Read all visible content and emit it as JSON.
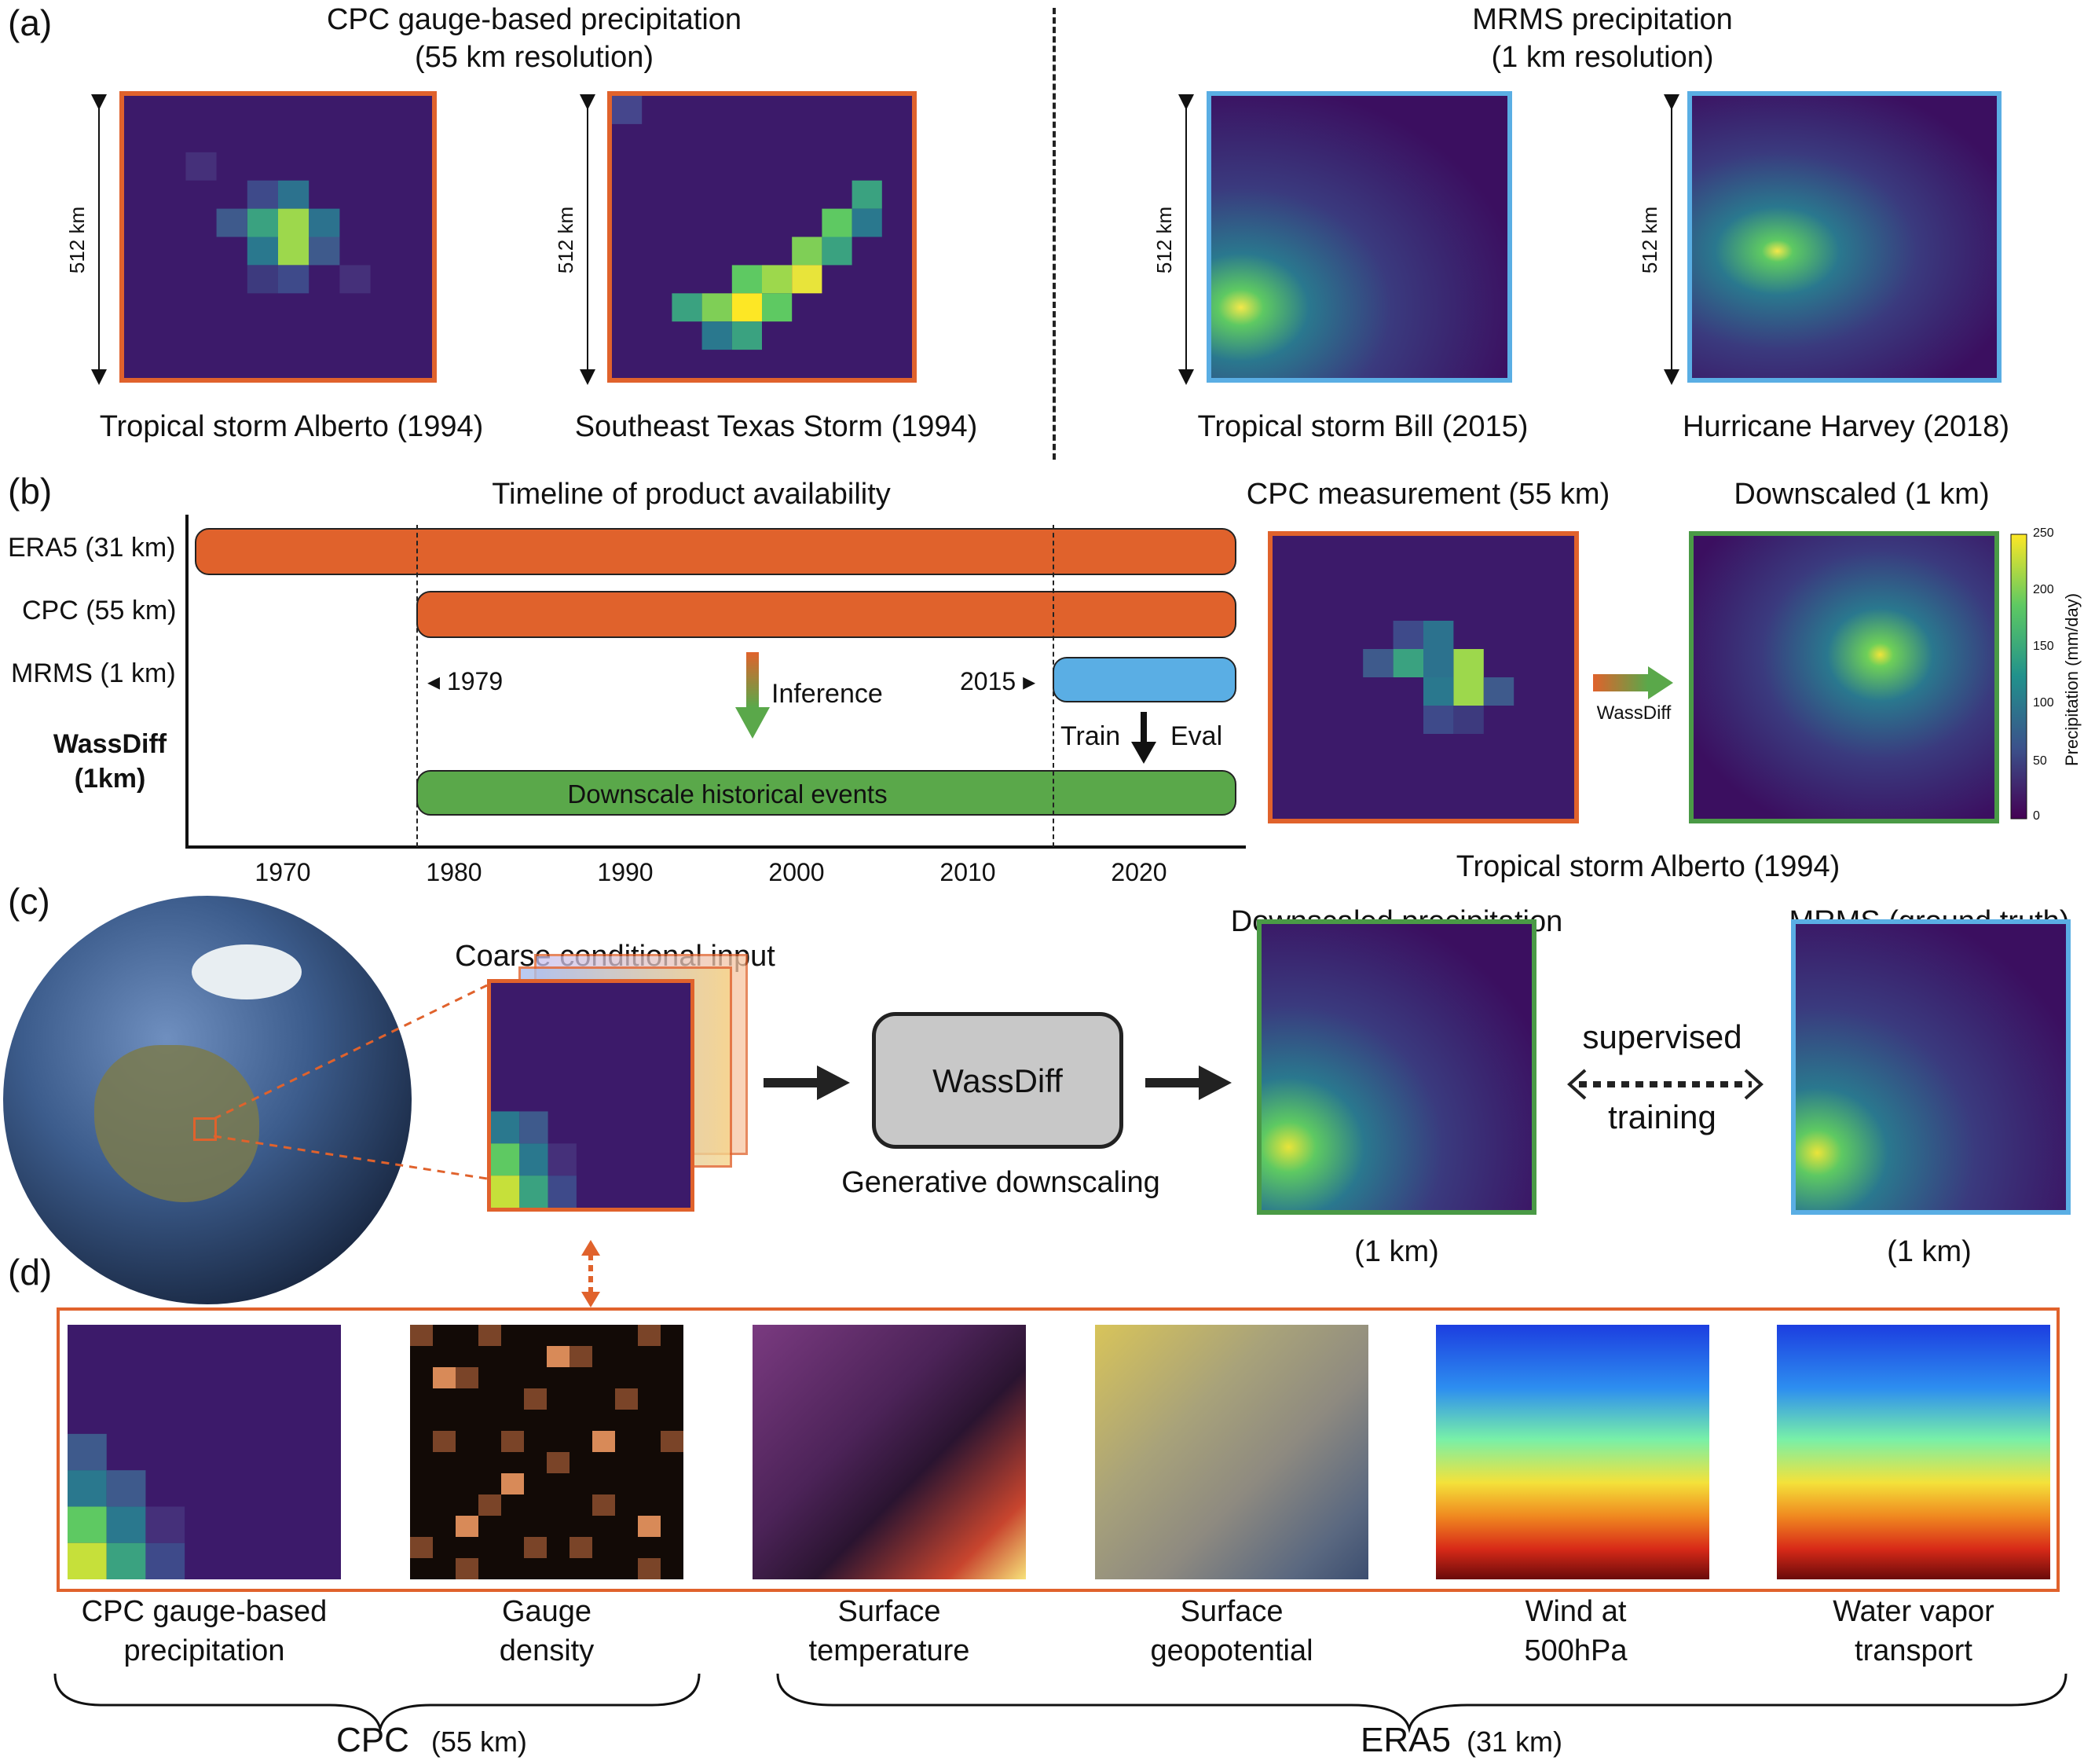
{
  "panel_letters": {
    "a": "(a)",
    "b": "(b)",
    "c": "(c)",
    "d": "(d)"
  },
  "panel_a": {
    "left_title_1": "CPC gauge-based precipitation",
    "left_title_2": "(55 km resolution)",
    "right_title_1": "MRMS precipitation",
    "right_title_2": "(1 km resolution)",
    "scale_label": "512 km",
    "maps": [
      {
        "caption": "Tropical storm Alberto (1994)"
      },
      {
        "caption": "Southeast Texas Storm (1994)"
      },
      {
        "caption": "Tropical storm Bill (2015)"
      },
      {
        "caption": "Hurricane Harvey (2018)"
      }
    ]
  },
  "panel_b": {
    "timeline_title": "Timeline of product availability",
    "rows": [
      {
        "label": "ERA5 (31 km)",
        "start": 1965,
        "end": 2025,
        "color": "#e0622c"
      },
      {
        "label": "CPC (55 km)",
        "start": 1979,
        "end": 2025,
        "color": "#e0622c"
      },
      {
        "label": "MRMS (1 km)",
        "start": 2015,
        "end": 2025,
        "color": "#5aaee4"
      }
    ],
    "wassdiff_label_1": "WassDiff",
    "wassdiff_label_2": "(1km)",
    "wassdiff_bar": {
      "label": "Downscale historical events",
      "start": 1979,
      "end": 2025,
      "color": "#5aa84a"
    },
    "marker_1979": "1979",
    "marker_2015": "2015",
    "inference": "Inference",
    "train": "Train",
    "eval": "Eval",
    "x_ticks": [
      "1970",
      "1980",
      "1990",
      "2000",
      "2010",
      "2020"
    ],
    "cpc_title": "CPC measurement (55 km)",
    "down_title": "Downscaled (1 km)",
    "arrow_label": "WassDiff",
    "event_caption": "Tropical storm Alberto (1994)",
    "colorbar_label": "Precipitation (mm/day)",
    "colorbar_ticks": [
      "250",
      "200",
      "150",
      "100",
      "50",
      "0"
    ]
  },
  "panel_c": {
    "coarse_title": "Coarse conditional input",
    "model_label": "WassDiff",
    "model_caption": "Generative downscaling",
    "down_title": "Downscaled precipitation",
    "truth_title": "MRMS (ground truth)",
    "supervised_1": "supervised",
    "supervised_2": "training",
    "res_left": "(1 km)",
    "res_right": "(1 km)"
  },
  "panel_d": {
    "inputs": [
      {
        "l1": "CPC gauge-based",
        "l2": "precipitation"
      },
      {
        "l1": "Gauge",
        "l2": "density"
      },
      {
        "l1": "Surface",
        "l2": "temperature"
      },
      {
        "l1": "Surface",
        "l2": "geopotential"
      },
      {
        "l1": "Wind at",
        "l2": "500hPa"
      },
      {
        "l1": "Water vapor",
        "l2": "transport"
      }
    ],
    "group_cpc": "CPC",
    "group_cpc_res": "(55 km)",
    "group_era5": "ERA5",
    "group_era5_res": "(31 km)"
  },
  "colors": {
    "orange": "#e0622c",
    "blue": "#5aaee4",
    "green": "#4a9a46",
    "viridis_dark": "#3b0f60"
  }
}
